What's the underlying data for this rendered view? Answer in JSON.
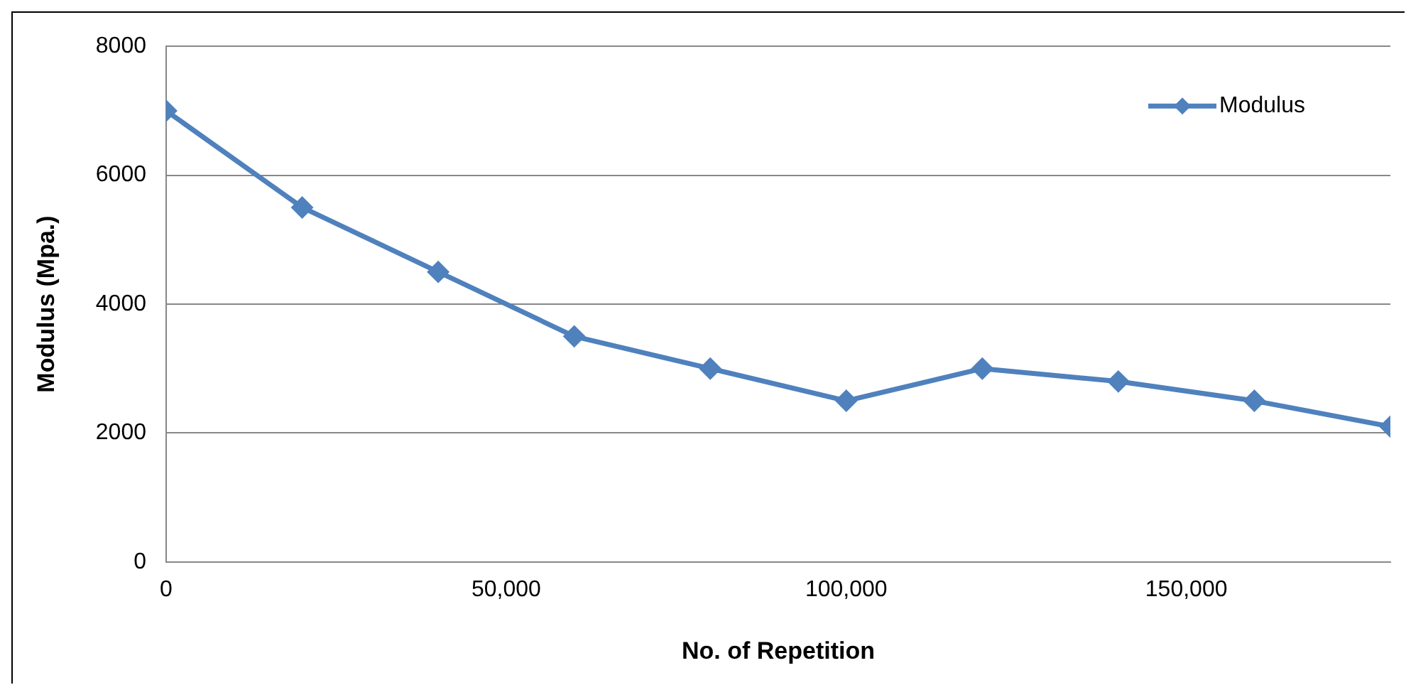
{
  "chart_data": {
    "type": "line",
    "xlabel": "No. of Repetition",
    "ylabel": "Modulus (Mpa.)",
    "x": [
      0,
      20000,
      40000,
      60000,
      80000,
      100000,
      120000,
      140000,
      160000,
      180000
    ],
    "series": [
      {
        "name": "Modulus",
        "color": "#4f81bd",
        "values": [
          7000,
          5500,
          4500,
          3500,
          3000,
          2500,
          3000,
          2800,
          2500,
          2100
        ]
      }
    ],
    "xlim": [
      0,
      180000
    ],
    "xticks": [
      0,
      {
        "value": 50000,
        "label": "50,000"
      },
      {
        "value": 100000,
        "label": "100,000"
      },
      {
        "value": 150000,
        "label": "150,000"
      }
    ],
    "ylim": [
      0,
      8000
    ],
    "yticks": [
      0,
      2000,
      4000,
      6000,
      8000
    ],
    "grid": "y",
    "legend": "top right",
    "marker": "diamond",
    "line_style": "solid"
  }
}
